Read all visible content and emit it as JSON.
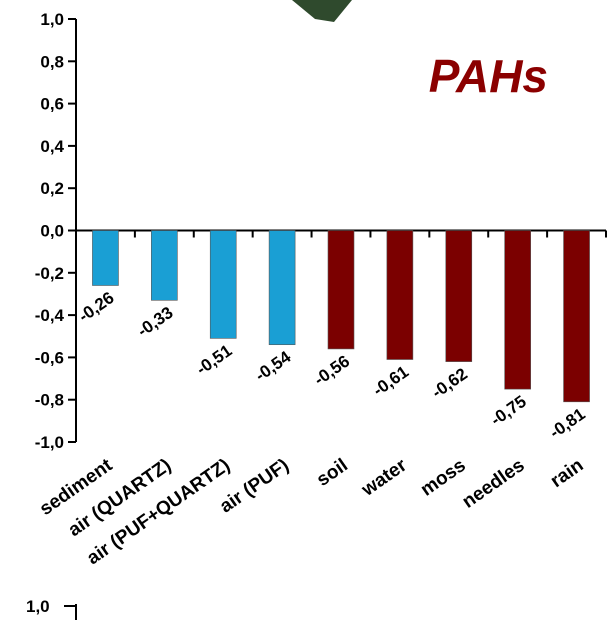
{
  "chart_data": {
    "type": "bar",
    "title": "PAHs",
    "categories": [
      "sediment",
      "air (QUARTZ)",
      "air (PUF+QUARTZ)",
      "air (PUF)",
      "soil",
      "water",
      "moss",
      "needles",
      "rain"
    ],
    "values": [
      -0.26,
      -0.33,
      -0.51,
      -0.54,
      -0.56,
      -0.61,
      -0.62,
      -0.75,
      -0.81
    ],
    "value_labels": [
      "-0,26",
      "-0,33",
      "-0,51",
      "-0,54",
      "-0,56",
      "-0,61",
      "-0,62",
      "-0,75",
      "-0,81"
    ],
    "bar_colors": [
      "#1a9fd4",
      "#1a9fd4",
      "#1a9fd4",
      "#1a9fd4",
      "#7b0000",
      "#7b0000",
      "#7b0000",
      "#7b0000",
      "#7b0000"
    ],
    "ylim": [
      -1.0,
      1.0
    ],
    "yticks": [
      "1,0",
      "0,8",
      "0,6",
      "0,4",
      "0,2",
      "0,0",
      "-0,2",
      "-0,4",
      "-0,6",
      "-0,8",
      "-1,0"
    ],
    "xlabel": "",
    "ylabel": "",
    "grid": false,
    "title_color": "#8b0000",
    "bottom_axis_fragment": "1,0"
  }
}
